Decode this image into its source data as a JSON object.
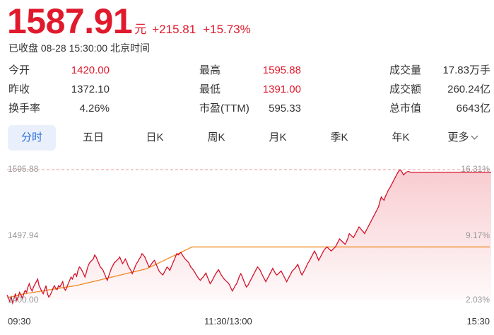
{
  "quote": {
    "price": "1587.91",
    "currency": "元",
    "change": "+215.81",
    "change_pct": "+15.73%",
    "status": "已收盘 08-28 15:30:00 北京时间"
  },
  "stats": [
    {
      "label": "今开",
      "value": "1420.00",
      "color": "up"
    },
    {
      "label": "最高",
      "value": "1595.88",
      "color": "up"
    },
    {
      "label": "成交量",
      "value": "17.83万手",
      "color": "neutral"
    },
    {
      "label": "昨收",
      "value": "1372.10",
      "color": "neutral"
    },
    {
      "label": "最低",
      "value": "1391.00",
      "color": "up"
    },
    {
      "label": "成交额",
      "value": "260.24亿",
      "color": "neutral"
    },
    {
      "label": "换手率",
      "value": "4.26%",
      "color": "neutral"
    },
    {
      "label": "市盈(TTM)",
      "value": "595.33",
      "color": "neutral"
    },
    {
      "label": "总市值",
      "value": "6643亿",
      "color": "neutral"
    }
  ],
  "tabs": [
    {
      "label": "分时",
      "active": true
    },
    {
      "label": "五日",
      "active": false
    },
    {
      "label": "日K",
      "active": false
    },
    {
      "label": "周K",
      "active": false
    },
    {
      "label": "月K",
      "active": false
    },
    {
      "label": "季K",
      "active": false
    },
    {
      "label": "年K",
      "active": false
    },
    {
      "label": "更多",
      "active": false,
      "icon": "chevron-down-icon"
    }
  ],
  "colors": {
    "up": "#e01a2c",
    "price_line": "#d4122a",
    "avg_line": "#f08a24",
    "active_tab_bg": "#e9f0fb",
    "active_tab_text": "#2e6fd8"
  },
  "chart_data": {
    "type": "line",
    "y_axis_left": [
      "1595.88",
      "1497.94",
      "1400.00"
    ],
    "y_axis_right": [
      "16.31%",
      "9.17%",
      "2.03%"
    ],
    "x_axis": [
      "09:30",
      "11:30/13:00",
      "15:30"
    ],
    "ylim": [
      1400.0,
      1595.88
    ],
    "high_ref": 1595.88,
    "grid": false,
    "series": [
      {
        "values": [
          1408,
          1404,
          1398,
          1405,
          1396,
          1403,
          1410,
          1400,
          1406,
          1412,
          1408,
          1403,
          1410,
          1415,
          1412,
          1420,
          1425,
          1418,
          1414,
          1420,
          1424,
          1428,
          1432,
          1422,
          1418,
          1413,
          1410,
          1416,
          1422,
          1410,
          1405,
          1408,
          1412,
          1418,
          1422,
          1418,
          1416,
          1422,
          1420,
          1424,
          1428,
          1418,
          1415,
          1420,
          1425,
          1430,
          1435,
          1432,
          1438,
          1440,
          1436,
          1445,
          1450,
          1448,
          1444,
          1440,
          1435,
          1442,
          1450,
          1455,
          1458,
          1460,
          1462,
          1468,
          1465,
          1460,
          1455,
          1450,
          1448,
          1445,
          1440,
          1435,
          1430,
          1436,
          1442,
          1448,
          1452,
          1456,
          1458,
          1460,
          1462,
          1465,
          1460,
          1455,
          1458,
          1462,
          1458,
          1452,
          1448,
          1445,
          1440,
          1445,
          1450,
          1455,
          1458,
          1462,
          1465,
          1470,
          1468,
          1465,
          1460,
          1455,
          1450,
          1452,
          1455,
          1458,
          1460,
          1455,
          1450,
          1445,
          1442,
          1440,
          1438,
          1442,
          1446,
          1450,
          1448,
          1445,
          1450,
          1455,
          1460,
          1465,
          1470,
          1468,
          1470,
          1472,
          1468,
          1465,
          1462,
          1460,
          1458,
          1455,
          1450,
          1448,
          1445,
          1442,
          1438,
          1435,
          1432,
          1430,
          1433,
          1435,
          1438,
          1441,
          1435,
          1430,
          1425,
          1428,
          1432,
          1436,
          1440,
          1443,
          1446,
          1442,
          1438,
          1435,
          1432,
          1430,
          1428,
          1426,
          1423,
          1418,
          1414,
          1418,
          1422,
          1425,
          1430,
          1436,
          1440,
          1436,
          1430,
          1425,
          1420,
          1422,
          1426,
          1430,
          1434,
          1438,
          1442,
          1446,
          1450,
          1448,
          1445,
          1440,
          1436,
          1432,
          1428,
          1432,
          1436,
          1440,
          1444,
          1448,
          1444,
          1440,
          1438,
          1440,
          1442,
          1444,
          1440,
          1436,
          1432,
          1428,
          1432,
          1436,
          1440,
          1444,
          1446,
          1448,
          1451,
          1454,
          1448,
          1442,
          1438,
          1442,
          1446,
          1450,
          1455,
          1458,
          1462,
          1466,
          1470,
          1474,
          1470,
          1465,
          1460,
          1464,
          1468,
          1472,
          1476,
          1478,
          1480,
          1478,
          1476,
          1474,
          1476,
          1478,
          1480,
          1484,
          1488,
          1492,
          1490,
          1488,
          1486,
          1484,
          1488,
          1493,
          1500,
          1498,
          1496,
          1494,
          1498,
          1502,
          1506,
          1510,
          1508,
          1505,
          1503,
          1500,
          1504,
          1508,
          1512,
          1516,
          1520,
          1524,
          1528,
          1532,
          1536,
          1540,
          1548,
          1555,
          1552,
          1550,
          1556,
          1560,
          1565,
          1568,
          1572,
          1576,
          1580,
          1584,
          1588,
          1592,
          1595,
          1595,
          1592,
          1588,
          1590,
          1592,
          1593,
          1593,
          1592,
          1592,
          1592,
          1592,
          1592,
          1592,
          1592,
          1592,
          1592,
          1592,
          1592,
          1592,
          1592,
          1592,
          1592,
          1592,
          1592,
          1592,
          1592,
          1592,
          1592,
          1592,
          1592,
          1592,
          1592,
          1592,
          1592,
          1592,
          1592,
          1592,
          1592,
          1592,
          1592,
          1592,
          1592,
          1592,
          1592,
          1592,
          1592,
          1592,
          1592,
          1592,
          1592,
          1592,
          1592,
          1592,
          1592,
          1592,
          1592,
          1592,
          1592,
          1592,
          1592,
          1592,
          1592,
          1592,
          1592,
          1592,
          1592
        ]
      },
      {
        "values": [
          1404,
          1404,
          1405,
          1405,
          1406,
          1406,
          1407,
          1407,
          1408,
          1408,
          1409,
          1409,
          1410,
          1410,
          1410,
          1411,
          1411,
          1411,
          1412,
          1412,
          1412,
          1413,
          1413,
          1413,
          1414,
          1414,
          1414,
          1415,
          1415,
          1415,
          1416,
          1416,
          1416,
          1417,
          1417,
          1417,
          1418,
          1418,
          1418,
          1419,
          1419,
          1419,
          1420,
          1420,
          1420,
          1421,
          1421,
          1421,
          1422,
          1422,
          1422,
          1423,
          1423,
          1424,
          1424,
          1425,
          1425,
          1426,
          1426,
          1427,
          1427,
          1428,
          1428,
          1429,
          1429,
          1430,
          1430,
          1431,
          1431,
          1432,
          1432,
          1433,
          1433,
          1434,
          1434,
          1435,
          1435,
          1436,
          1436,
          1437,
          1437,
          1438,
          1438,
          1439,
          1439,
          1440,
          1440,
          1441,
          1441,
          1442,
          1442,
          1443,
          1443,
          1444,
          1444,
          1445,
          1445,
          1446,
          1446,
          1447,
          1447,
          1448,
          1449,
          1450,
          1451,
          1452,
          1453,
          1454,
          1455,
          1456,
          1457,
          1458,
          1459,
          1460,
          1461,
          1462,
          1463,
          1464,
          1465,
          1466,
          1467,
          1468,
          1469,
          1470,
          1471,
          1472,
          1473,
          1474,
          1475,
          1476,
          1477,
          1478,
          1479,
          1480,
          1480,
          1480,
          1480,
          1480,
          1480,
          1480,
          1480,
          1480,
          1480,
          1480,
          1480,
          1480,
          1480,
          1480,
          1480,
          1480,
          1480,
          1480,
          1480,
          1480,
          1480,
          1480,
          1480,
          1480,
          1480,
          1480,
          1480,
          1480,
          1480,
          1480,
          1480,
          1480,
          1480,
          1480,
          1480,
          1480,
          1480,
          1480,
          1480,
          1480,
          1480,
          1480,
          1480,
          1480,
          1480,
          1480,
          1480,
          1480,
          1480,
          1480,
          1480,
          1480,
          1480,
          1480,
          1480,
          1480,
          1480,
          1480,
          1480,
          1480,
          1480,
          1480,
          1480,
          1480,
          1480,
          1480,
          1480,
          1480,
          1480,
          1480,
          1480,
          1480,
          1480,
          1480,
          1480,
          1480,
          1480,
          1480,
          1480,
          1480,
          1480,
          1480,
          1480,
          1480,
          1480,
          1480,
          1480,
          1480,
          1480,
          1480,
          1480,
          1480,
          1480,
          1480,
          1480,
          1480,
          1480,
          1480,
          1480,
          1480,
          1480,
          1480,
          1480,
          1480,
          1480,
          1480,
          1480,
          1480,
          1480,
          1480,
          1480,
          1480,
          1480,
          1480,
          1480,
          1480,
          1480,
          1480,
          1480,
          1480,
          1480,
          1480,
          1480,
          1480,
          1480,
          1480,
          1480,
          1480,
          1480,
          1480,
          1480,
          1480,
          1480,
          1480,
          1480,
          1480,
          1480,
          1480,
          1480,
          1480,
          1480,
          1480,
          1480,
          1480,
          1480,
          1480,
          1480,
          1480,
          1480,
          1480,
          1480,
          1480,
          1480,
          1480,
          1480,
          1480,
          1480,
          1480,
          1480,
          1480,
          1480,
          1480,
          1480,
          1480,
          1480,
          1480,
          1480,
          1480,
          1480,
          1480,
          1480,
          1480,
          1480,
          1480,
          1480,
          1480,
          1480,
          1480,
          1480,
          1480,
          1480,
          1480,
          1480,
          1480,
          1480,
          1480,
          1480,
          1480,
          1480,
          1480,
          1480,
          1480,
          1480,
          1480,
          1480,
          1480,
          1480,
          1480,
          1480,
          1480,
          1480,
          1480,
          1480,
          1480,
          1480,
          1480,
          1480,
          1480,
          1480,
          1480,
          1480,
          1480,
          1480,
          1480
        ]
      }
    ]
  }
}
